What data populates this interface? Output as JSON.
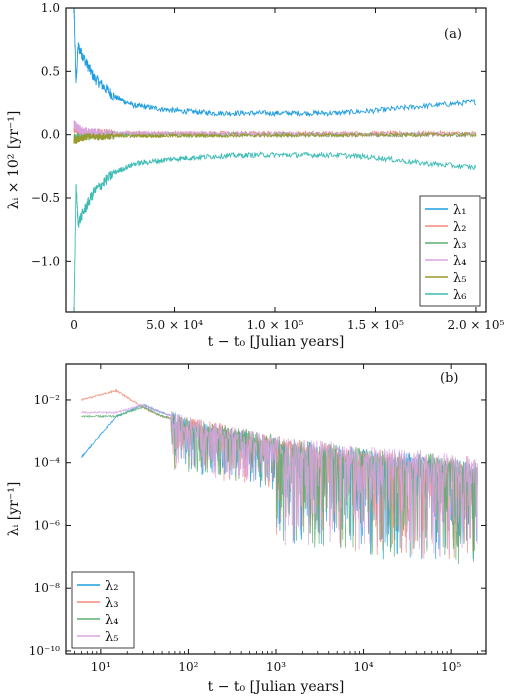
{
  "chart_data": [
    {
      "type": "line",
      "panel": "(a)",
      "xlabel": "t − t₀ [Julian years]",
      "ylabel": "λᵢ × 10² [yr⁻¹]",
      "xlim": [
        -4000,
        205000
      ],
      "ylim": [
        -1.4,
        1.0
      ],
      "xticks": [
        0,
        50000,
        100000,
        150000,
        200000
      ],
      "xtick_labels": [
        "0",
        "5.0 × 10⁴",
        "1.0 × 10⁵",
        "1.5 × 10⁵",
        "2.0 × 10⁵"
      ],
      "yticks": [
        -1.0,
        -0.5,
        0.0,
        0.5,
        1.0
      ],
      "ytick_labels": [
        "−1.0",
        "−0.5",
        "0.0",
        "0.5",
        "1.0"
      ],
      "legend_position": "bottom-right",
      "series": [
        {
          "name": "λ₁",
          "color": "#1f9de0",
          "x": [
            0,
            1000,
            2000,
            5000,
            10000,
            20000,
            30000,
            50000,
            70000,
            90000,
            110000,
            130000,
            150000,
            170000,
            200000
          ],
          "y": [
            1.0,
            0.4,
            0.7,
            0.6,
            0.45,
            0.3,
            0.23,
            0.19,
            0.17,
            0.17,
            0.17,
            0.17,
            0.19,
            0.22,
            0.26
          ],
          "noise": 0.015
        },
        {
          "name": "λ₂",
          "color": "#f08c78",
          "x": [
            0,
            2000,
            5000,
            20000,
            200000
          ],
          "y": [
            0.05,
            0.03,
            0.02,
            0.01,
            0.01
          ],
          "noise": 0.012
        },
        {
          "name": "λ₃",
          "color": "#5aae6e",
          "x": [
            0,
            2000,
            5000,
            20000,
            200000
          ],
          "y": [
            -0.03,
            -0.02,
            -0.01,
            0.0,
            0.0
          ],
          "noise": 0.012
        },
        {
          "name": "λ₄",
          "color": "#d9a3e0",
          "x": [
            0,
            2000,
            5000,
            20000,
            200000
          ],
          "y": [
            0.08,
            0.05,
            0.02,
            0.01,
            0.0
          ],
          "noise": 0.012
        },
        {
          "name": "λ₅",
          "color": "#9a9a2a",
          "x": [
            0,
            2000,
            5000,
            20000,
            200000
          ],
          "y": [
            -0.05,
            -0.03,
            -0.02,
            -0.01,
            0.0
          ],
          "noise": 0.01
        },
        {
          "name": "λ₆",
          "color": "#3cbcb4",
          "x": [
            0,
            1000,
            2000,
            5000,
            10000,
            20000,
            30000,
            50000,
            70000,
            90000,
            110000,
            130000,
            150000,
            170000,
            200000
          ],
          "y": [
            -1.4,
            -0.4,
            -0.7,
            -0.6,
            -0.45,
            -0.3,
            -0.23,
            -0.19,
            -0.17,
            -0.16,
            -0.16,
            -0.16,
            -0.18,
            -0.22,
            -0.26
          ],
          "noise": 0.015
        }
      ]
    },
    {
      "type": "line",
      "panel": "(b)",
      "xlabel": "t − t₀ [Julian years]",
      "ylabel": "λᵢ [yr⁻¹]",
      "xscale": "log",
      "yscale": "log",
      "xlim": [
        4,
        250000
      ],
      "ylim": [
        8e-11,
        0.14
      ],
      "xticks": [
        10,
        100,
        1000,
        10000,
        100000
      ],
      "xtick_labels": [
        "10¹",
        "10²",
        "10³",
        "10⁴",
        "10⁵"
      ],
      "yticks": [
        1e-10,
        1e-08,
        1e-06,
        0.0001,
        0.01
      ],
      "ytick_labels": [
        "10⁻¹⁰",
        "10⁻⁸",
        "10⁻⁶",
        "10⁻⁴",
        "10⁻²"
      ],
      "legend_position": "bottom-left",
      "series": [
        {
          "name": "λ₂",
          "color": "#1f9de0",
          "x": [
            6,
            15,
            30,
            50,
            100,
            1000,
            10000,
            100000,
            200000
          ],
          "y": [
            0.00015,
            0.003,
            0.007,
            0.004,
            0.002,
            0.0004,
            0.0002,
            0.0001,
            6e-05
          ]
        },
        {
          "name": "λ₃",
          "color": "#f08c78",
          "x": [
            6,
            15,
            30,
            50,
            100,
            1000,
            10000,
            100000,
            200000
          ],
          "y": [
            0.01,
            0.02,
            0.006,
            0.003,
            0.002,
            0.0005,
            0.0002,
            0.0001,
            6e-05
          ]
        },
        {
          "name": "λ₄",
          "color": "#5aae6e",
          "x": [
            6,
            15,
            30,
            50,
            100,
            1000,
            10000,
            100000,
            200000
          ],
          "y": [
            0.003,
            0.003,
            0.006,
            0.003,
            0.002,
            0.0005,
            0.0002,
            0.00012,
            7e-05
          ]
        },
        {
          "name": "λ₅",
          "color": "#d9a3e0",
          "x": [
            6,
            15,
            30,
            50,
            100,
            1000,
            10000,
            100000,
            200000
          ],
          "y": [
            0.004,
            0.004,
            0.007,
            0.004,
            0.002,
            0.0005,
            0.00025,
            0.00015,
            0.0001
          ]
        }
      ]
    }
  ]
}
